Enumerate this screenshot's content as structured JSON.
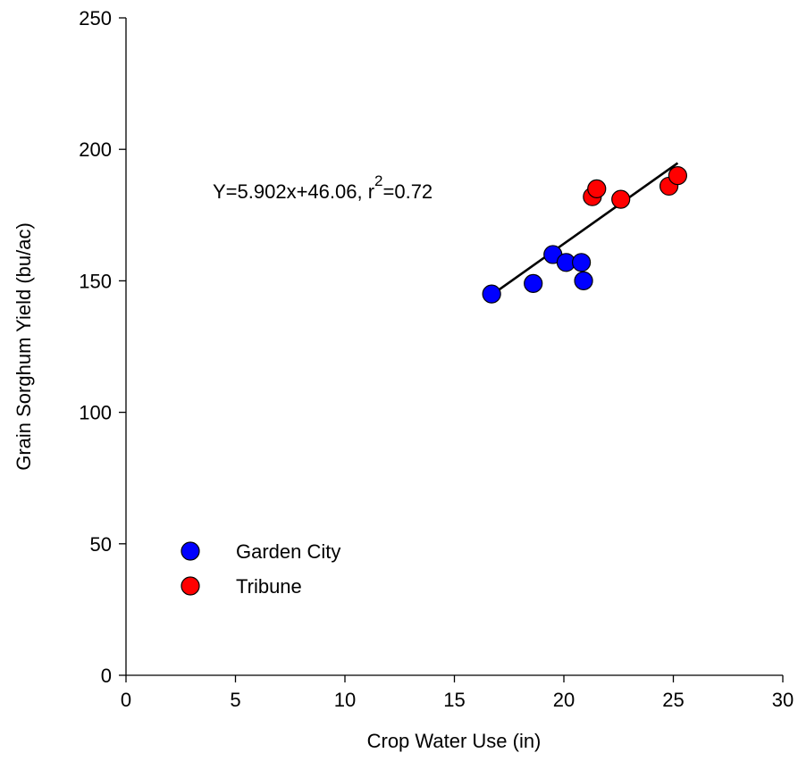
{
  "chart_data": {
    "type": "scatter",
    "title": "",
    "xlabel": "Crop Water Use (in)",
    "ylabel": "Grain Sorghum Yield (bu/ac)",
    "xlim": [
      0,
      30
    ],
    "ylim": [
      0,
      250
    ],
    "xticks": [
      0,
      5,
      10,
      15,
      20,
      25,
      30
    ],
    "yticks": [
      0,
      50,
      100,
      150,
      200,
      250
    ],
    "grid": false,
    "legend_position": "bottom-left",
    "series": [
      {
        "name": "Garden City",
        "color": "#0000ff",
        "points": [
          {
            "x": 16.7,
            "y": 145
          },
          {
            "x": 18.6,
            "y": 149
          },
          {
            "x": 19.5,
            "y": 160
          },
          {
            "x": 20.1,
            "y": 157
          },
          {
            "x": 20.8,
            "y": 157
          },
          {
            "x": 20.9,
            "y": 150
          }
        ]
      },
      {
        "name": "Tribune",
        "color": "#ff0000",
        "points": [
          {
            "x": 21.3,
            "y": 182
          },
          {
            "x": 21.5,
            "y": 185
          },
          {
            "x": 22.6,
            "y": 181
          },
          {
            "x": 24.8,
            "y": 186
          },
          {
            "x": 25.2,
            "y": 190
          }
        ]
      }
    ],
    "regression": {
      "slope": 5.902,
      "intercept": 46.06,
      "x_range": [
        16.7,
        25.2
      ],
      "equation_label": "Y=5.902x+46.06, r",
      "r_squared_exponent": "2",
      "r_squared_value": "=0.72"
    }
  }
}
